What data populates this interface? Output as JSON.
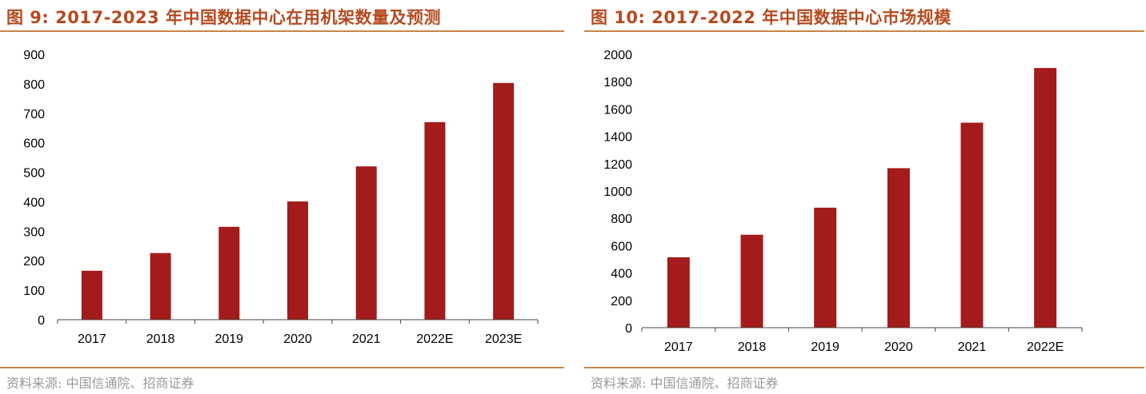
{
  "colors": {
    "bar": "#a31b1b",
    "title": "#b54a1f",
    "rule": "#c8854a",
    "source": "#999999"
  },
  "panels": [
    {
      "title": "图 9:  2017-2023 年中国数据中心在用机架数量及预测",
      "source": "资料来源:  中国信通院、招商证券"
    },
    {
      "title": "图 10:  2017-2022 年中国数据中心市场规模",
      "source": "资料来源:  中国信通院、招商证券"
    }
  ],
  "chart_data": [
    {
      "type": "bar",
      "categories": [
        "2017",
        "2018",
        "2019",
        "2020",
        "2021",
        "2022E",
        "2023E"
      ],
      "values": [
        166,
        226,
        315,
        401,
        520,
        670,
        803
      ],
      "ylim": [
        0,
        900
      ],
      "yticks": [
        0,
        100,
        200,
        300,
        400,
        500,
        600,
        700,
        800,
        900
      ],
      "grid": false,
      "legend": "none"
    },
    {
      "type": "bar",
      "categories": [
        "2017",
        "2018",
        "2019",
        "2020",
        "2021",
        "2022E"
      ],
      "values": [
        515,
        680,
        878,
        1167,
        1500,
        1900
      ],
      "ylim": [
        0,
        2000
      ],
      "yticks": [
        0,
        200,
        400,
        600,
        800,
        1000,
        1200,
        1400,
        1600,
        1800,
        2000
      ],
      "grid": false,
      "legend": "none"
    }
  ]
}
